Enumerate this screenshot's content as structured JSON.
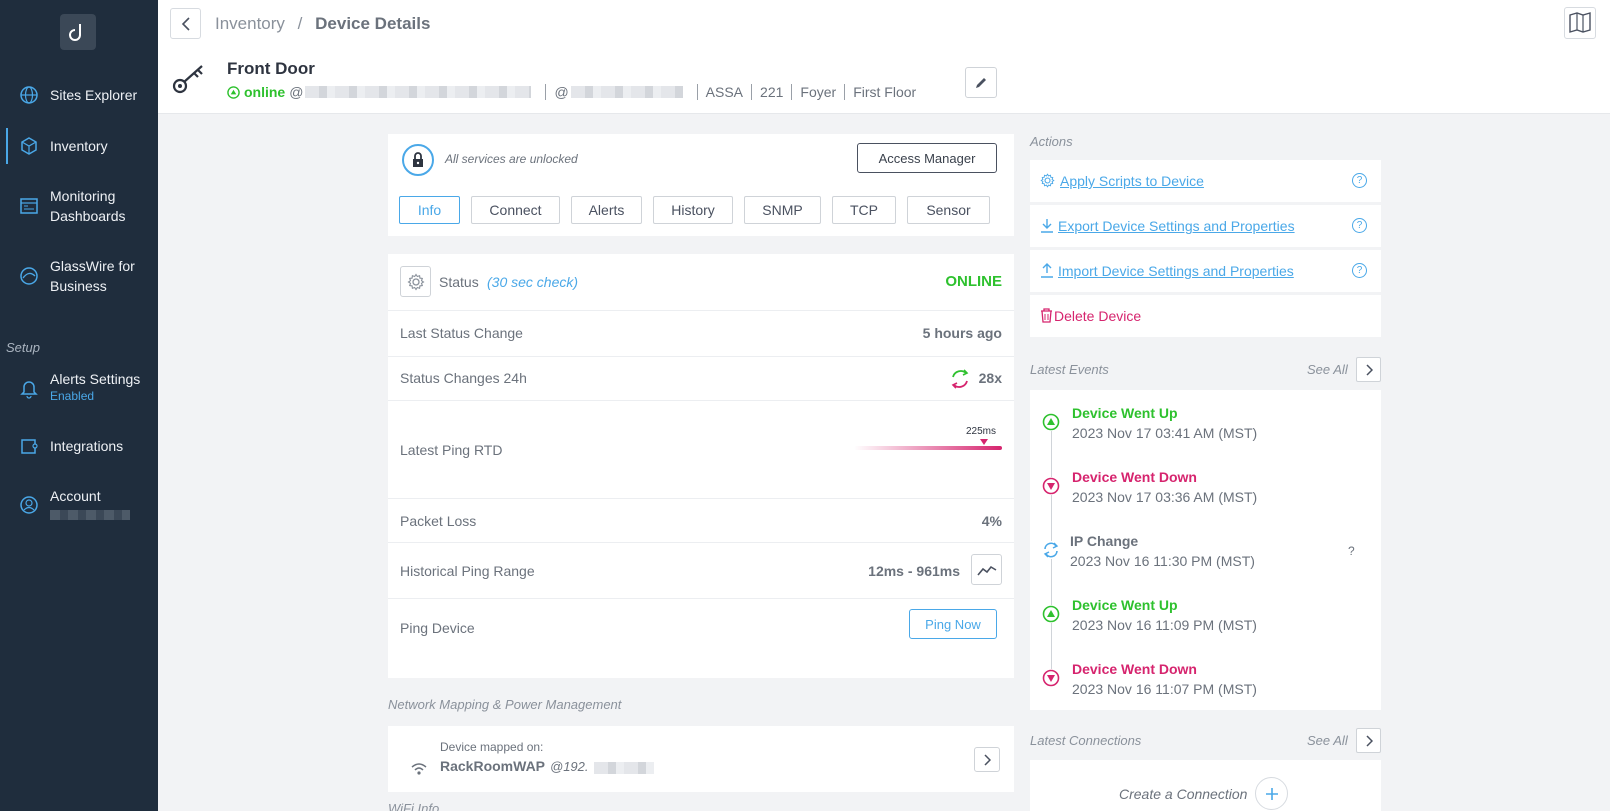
{
  "sidebar": {
    "items": [
      {
        "label": "Sites Explorer",
        "icon": "globe-icon"
      },
      {
        "label": "Inventory",
        "icon": "cubes-icon"
      },
      {
        "label": "Monitoring",
        "label2": "Dashboards",
        "icon": "dashboard-icon"
      },
      {
        "label": "GlassWire for",
        "label2": "Business",
        "icon": "glasswire-icon"
      },
      {
        "label": "Alerts Settings",
        "sub": "Enabled",
        "icon": "bell-icon"
      },
      {
        "label": "Integrations",
        "icon": "puzzle-icon"
      },
      {
        "label": "Account",
        "icon": "user-icon"
      }
    ],
    "setup_label": "Setup"
  },
  "breadcrumb": {
    "parent": "Inventory",
    "separator": "/",
    "current": "Device Details"
  },
  "device": {
    "name": "Front Door",
    "status": "online",
    "at1": "@",
    "at2": "@",
    "tags": [
      "ASSA",
      "221",
      "Foyer",
      "First Floor"
    ]
  },
  "lock": {
    "text": "All services are unlocked",
    "button": "Access Manager"
  },
  "tabs": [
    "Info",
    "Connect",
    "Alerts",
    "History",
    "SNMP",
    "TCP",
    "Sensor"
  ],
  "status_rows": {
    "status_label": "Status",
    "status_check": "(30 sec check)",
    "status_value": "ONLINE",
    "last_change_label": "Last Status Change",
    "last_change_value": "5 hours ago",
    "changes_label": "Status Changes 24h",
    "changes_value": "28x",
    "ping_label": "Latest Ping RTD",
    "ping_value": "225ms",
    "loss_label": "Packet Loss",
    "loss_value": "4%",
    "range_label": "Historical Ping Range",
    "range_value": "12ms - 961ms",
    "ping_device_label": "Ping Device",
    "ping_now": "Ping Now"
  },
  "network": {
    "section": "Network Mapping & Power Management",
    "mapped_on": "Device mapped on:",
    "device": "RackRoomWAP",
    "ip": "@192.",
    "wifi_section": "WiFi Info"
  },
  "actions": {
    "title": "Actions",
    "items": [
      {
        "label": "Apply Scripts to Device"
      },
      {
        "label": "Export Device Settings and Properties"
      },
      {
        "label": "Import Device Settings and Properties"
      }
    ],
    "delete": "Delete Device"
  },
  "events": {
    "title": "Latest Events",
    "see_all": "See All",
    "items": [
      {
        "title": "Device Went Up",
        "date": "2023 Nov 17 03:41 AM (MST)",
        "kind": "up"
      },
      {
        "title": "Device Went Down",
        "date": "2023 Nov 17 03:36 AM (MST)",
        "kind": "down"
      },
      {
        "title": "IP Change",
        "date": "2023 Nov 16 11:30 PM (MST)",
        "kind": "ip",
        "help": "?"
      },
      {
        "title": "Device Went Up",
        "date": "2023 Nov 16 11:09 PM (MST)",
        "kind": "up"
      },
      {
        "title": "Device Went Down",
        "date": "2023 Nov 16 11:07 PM (MST)",
        "kind": "down"
      }
    ]
  },
  "connections": {
    "title": "Latest Connections",
    "see_all": "See All",
    "create": "Create a Connection"
  },
  "colors": {
    "sidebar": "#1f2d3d",
    "accent": "#4aa8e8",
    "online": "#2ec12e",
    "down": "#d6246e"
  }
}
